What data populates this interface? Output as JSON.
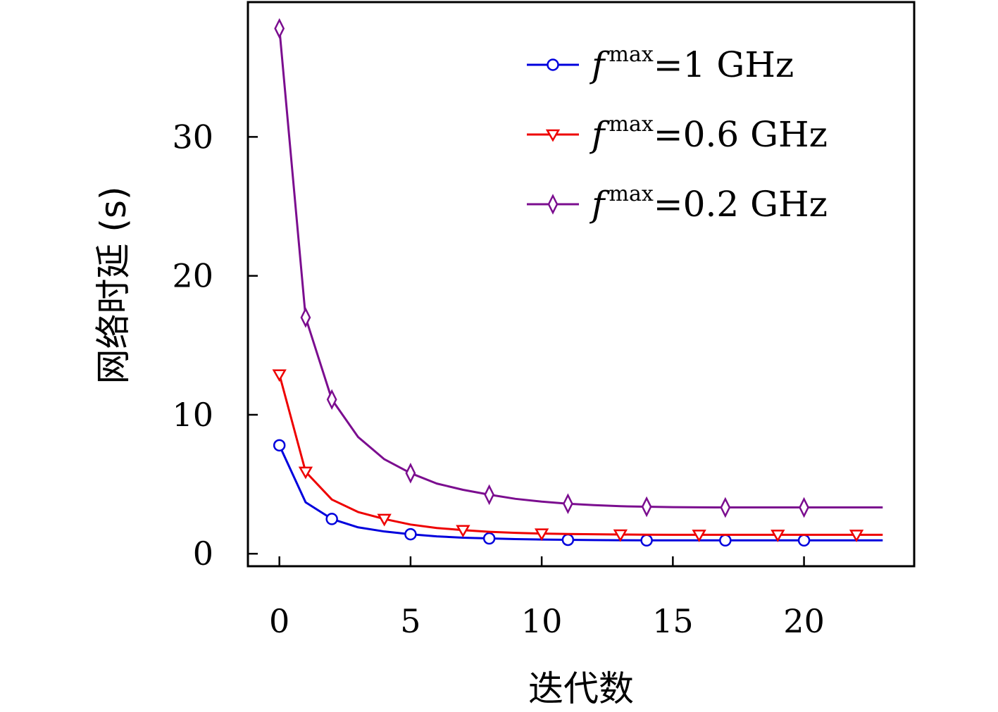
{
  "chart_data": {
    "type": "line",
    "xlabel": "迭代数",
    "ylabel": "网络时延 (s)",
    "xlim": [
      -1.2,
      24.2
    ],
    "ylim": [
      -0.9,
      39.7
    ],
    "xticks": [
      0,
      5,
      10,
      15,
      20
    ],
    "yticks": [
      0,
      10,
      20,
      30
    ],
    "grid": false,
    "legend_position": "top-right",
    "series": [
      {
        "name_prefix": "f",
        "name_sup": "max",
        "name_suffix": "=1 GHz",
        "color": "#0000dd",
        "marker": "circle",
        "x": [
          0,
          1,
          2,
          3,
          4,
          5,
          6,
          7,
          8,
          9,
          10,
          11,
          12,
          13,
          14,
          15,
          16,
          17,
          18,
          19,
          20,
          21,
          22,
          23
        ],
        "y": [
          7.8,
          3.7,
          2.5,
          1.9,
          1.6,
          1.4,
          1.25,
          1.15,
          1.1,
          1.05,
          1.02,
          1.0,
          0.98,
          0.97,
          0.96,
          0.96,
          0.96,
          0.96,
          0.96,
          0.96,
          0.96,
          0.96,
          0.96,
          0.96
        ],
        "marker_x": [
          0,
          2,
          5,
          8,
          11,
          14,
          17,
          20
        ]
      },
      {
        "name_prefix": "f",
        "name_sup": "max",
        "name_suffix": "=0.6 GHz",
        "color": "#ee0000",
        "marker": "triangle-down",
        "x": [
          0,
          1,
          2,
          3,
          4,
          5,
          6,
          7,
          8,
          9,
          10,
          11,
          12,
          13,
          14,
          15,
          16,
          17,
          18,
          19,
          20,
          21,
          22,
          23
        ],
        "y": [
          12.9,
          5.9,
          3.9,
          3.0,
          2.5,
          2.1,
          1.85,
          1.7,
          1.58,
          1.5,
          1.45,
          1.42,
          1.4,
          1.38,
          1.37,
          1.36,
          1.36,
          1.36,
          1.36,
          1.36,
          1.36,
          1.36,
          1.36,
          1.36
        ],
        "marker_x": [
          0,
          1,
          4,
          7,
          10,
          13,
          16,
          19,
          22
        ]
      },
      {
        "name_prefix": "f",
        "name_sup": "max",
        "name_suffix": "=0.2 GHz",
        "color": "#7b0d8f",
        "marker": "thin-diamond",
        "x": [
          0,
          1,
          2,
          3,
          4,
          5,
          6,
          7,
          8,
          9,
          10,
          11,
          12,
          13,
          14,
          15,
          16,
          17,
          18,
          19,
          20,
          21,
          22,
          23
        ],
        "y": [
          37.8,
          17.0,
          11.1,
          8.4,
          6.8,
          5.8,
          5.05,
          4.6,
          4.25,
          3.95,
          3.75,
          3.6,
          3.5,
          3.42,
          3.38,
          3.35,
          3.34,
          3.33,
          3.33,
          3.33,
          3.33,
          3.33,
          3.33,
          3.33
        ],
        "marker_x": [
          0,
          1,
          2,
          5,
          8,
          11,
          14,
          17,
          20
        ]
      }
    ]
  }
}
